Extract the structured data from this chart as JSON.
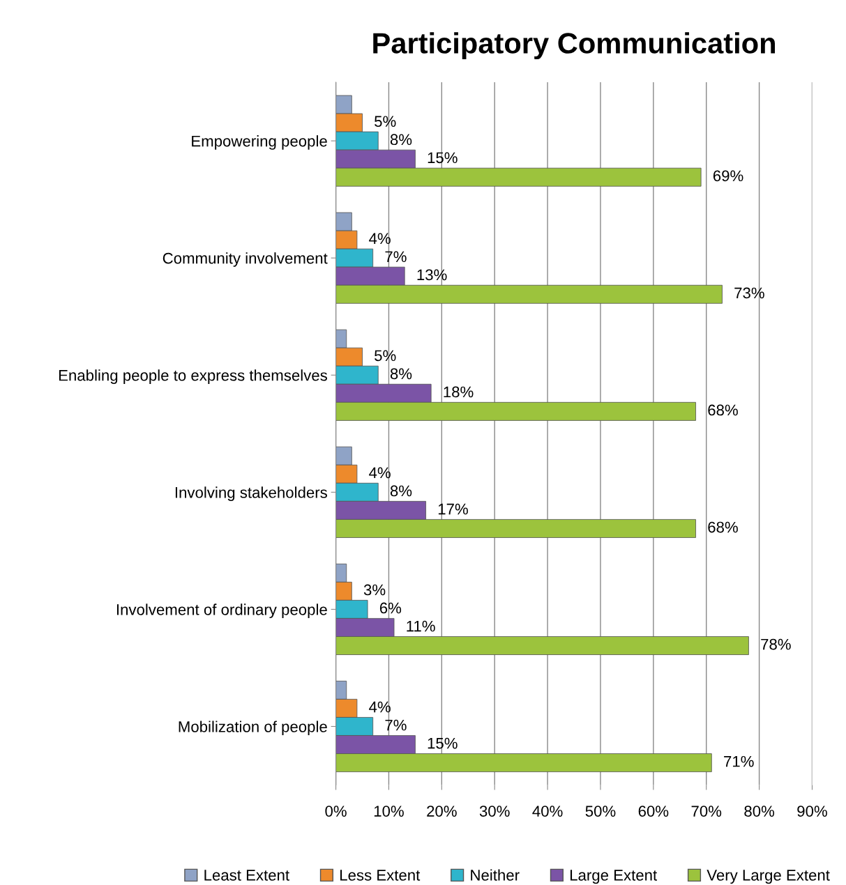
{
  "chart_data": {
    "type": "bar",
    "orientation": "horizontal",
    "title": "Participatory Communication",
    "categories": [
      "Empowering people",
      "Community involvement",
      "Enabling people to express themselves",
      "Involving stakeholders",
      "Involvement of ordinary people",
      "Mobilization of people"
    ],
    "series": [
      {
        "name": "Least Extent",
        "color": "#8fa3c6",
        "values": [
          3,
          3,
          2,
          3,
          2,
          2
        ],
        "value_labels": [
          null,
          null,
          null,
          null,
          null,
          null
        ]
      },
      {
        "name": "Less Extent",
        "color": "#ed8a2c",
        "values": [
          5,
          4,
          5,
          4,
          3,
          4
        ],
        "value_labels": [
          "5%",
          "4%",
          "5%",
          "4%",
          "3%",
          "4%"
        ]
      },
      {
        "name": "Neither",
        "color": "#2fb5cc",
        "values": [
          8,
          7,
          8,
          8,
          6,
          7
        ],
        "value_labels": [
          "8%",
          "7%",
          "8%",
          "8%",
          "6%",
          "7%"
        ]
      },
      {
        "name": "Large Extent",
        "color": "#7b54a6",
        "values": [
          15,
          13,
          18,
          17,
          11,
          15
        ],
        "value_labels": [
          "15%",
          "13%",
          "18%",
          "17%",
          "11%",
          "15%"
        ]
      },
      {
        "name": "Very Large Extent",
        "color": "#9cc33d",
        "values": [
          69,
          73,
          68,
          68,
          78,
          71
        ],
        "value_labels": [
          "69%",
          "73%",
          "68%",
          "68%",
          "78%",
          "71%"
        ]
      }
    ],
    "xlim": [
      0,
      90
    ],
    "xticks": [
      {
        "value": 0,
        "label": "0%"
      },
      {
        "value": 10,
        "label": "10%"
      },
      {
        "value": 20,
        "label": "20%"
      },
      {
        "value": 30,
        "label": "30%"
      },
      {
        "value": 40,
        "label": "40%"
      },
      {
        "value": 50,
        "label": "50%"
      },
      {
        "value": 60,
        "label": "60%"
      },
      {
        "value": 70,
        "label": "70%"
      },
      {
        "value": 80,
        "label": "80%"
      },
      {
        "value": 90,
        "label": "90%"
      }
    ],
    "grid": "x",
    "legend": "bottom"
  }
}
